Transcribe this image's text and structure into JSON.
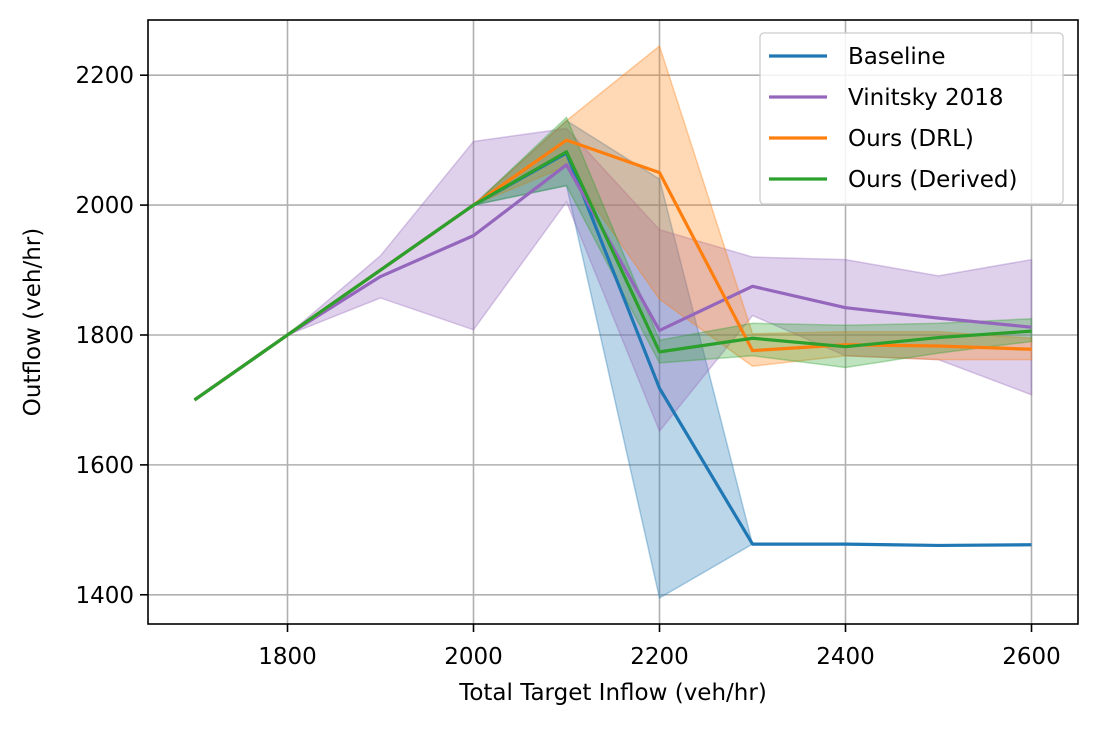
{
  "chart_data": {
    "type": "line",
    "title": "",
    "xlabel": "Total Target Inflow (veh/hr)",
    "ylabel": "Outflow (veh/hr)",
    "xlim": [
      1650,
      2650
    ],
    "ylim": [
      1355,
      2285
    ],
    "xticks": [
      1800,
      2000,
      2200,
      2400,
      2600
    ],
    "yticks": [
      1400,
      1600,
      1800,
      2000,
      2200
    ],
    "grid": true,
    "legend_position": "top-right",
    "series": [
      {
        "name": "Baseline",
        "color": "#1f77b4",
        "x": [
          1700,
          1800,
          1900,
          2000,
          2100,
          2200,
          2300,
          2400,
          2500,
          2600
        ],
        "values": [
          1700,
          1800,
          1900,
          2000,
          2080,
          1718,
          1478,
          1478,
          1476,
          1477
        ],
        "lower": [
          1700,
          1800,
          1900,
          2000,
          2030,
          1395,
          1478,
          1478,
          1476,
          1477
        ],
        "upper": [
          1700,
          1800,
          1900,
          2000,
          2130,
          2040,
          1478,
          1478,
          1476,
          1477
        ]
      },
      {
        "name": "Vinitsky 2018",
        "color": "#9467bd",
        "x": [
          1700,
          1800,
          1900,
          2000,
          2100,
          2200,
          2300,
          2400,
          2500,
          2600
        ],
        "values": [
          1700,
          1800,
          1890,
          1953,
          2062,
          1807,
          1875,
          1842,
          1826,
          1812
        ],
        "lower": [
          1700,
          1800,
          1857,
          1808,
          2005,
          1652,
          1830,
          1768,
          1762,
          1708
        ],
        "upper": [
          1700,
          1800,
          1922,
          2098,
          2118,
          1962,
          1920,
          1916,
          1891,
          1916
        ]
      },
      {
        "name": "Ours (DRL)",
        "color": "#ff7f0e",
        "x": [
          1700,
          1800,
          1900,
          2000,
          2100,
          2200,
          2300,
          2400,
          2500,
          2600
        ],
        "values": [
          1700,
          1800,
          1900,
          2000,
          2100,
          2050,
          1776,
          1785,
          1783,
          1778
        ],
        "lower": [
          1700,
          1800,
          1900,
          2000,
          2060,
          1855,
          1752,
          1768,
          1762,
          1762
        ],
        "upper": [
          1700,
          1800,
          1900,
          2000,
          2130,
          2245,
          1802,
          1805,
          1805,
          1795
        ]
      },
      {
        "name": "Ours (Derived)",
        "color": "#2ca02c",
        "x": [
          1700,
          1800,
          1900,
          2000,
          2100,
          2200,
          2300,
          2400,
          2500,
          2600
        ],
        "values": [
          1700,
          1800,
          1900,
          2000,
          2082,
          1774,
          1795,
          1782,
          1796,
          1806
        ],
        "lower": [
          1700,
          1800,
          1900,
          2000,
          2030,
          1757,
          1768,
          1750,
          1772,
          1790
        ],
        "upper": [
          1700,
          1800,
          1900,
          2000,
          2135,
          1792,
          1818,
          1815,
          1818,
          1825
        ]
      }
    ]
  }
}
